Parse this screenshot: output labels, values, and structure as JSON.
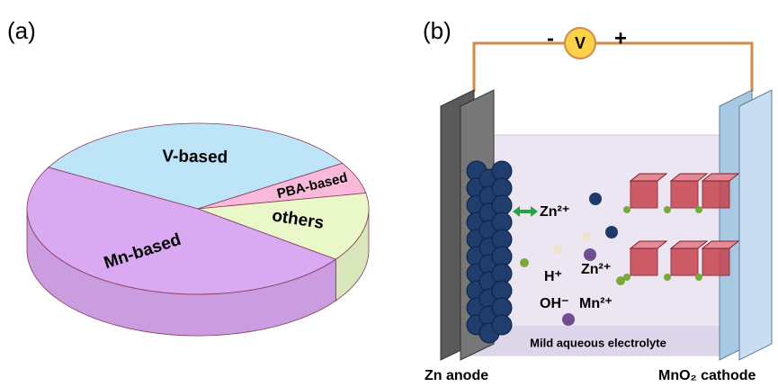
{
  "panel_labels": [
    "(a)",
    "(b)"
  ],
  "chart_data": {
    "type": "pie",
    "categories": [
      "V-based",
      "PBA-based",
      "others",
      "Mn-based"
    ],
    "values": [
      33,
      6,
      13,
      48
    ],
    "colors": [
      "#bde4f7",
      "#f8b9da",
      "#e9f7c9",
      "#d9a9f2"
    ]
  },
  "diagram": {
    "meter": "V",
    "minus": "-",
    "plus": "+",
    "ions": [
      "Zn²⁺",
      "H⁺",
      "Zn²⁺",
      "OH⁻",
      "Mn²⁺"
    ],
    "electrolyte": "Mild aqueous electrolyte",
    "anode": "Zn anode",
    "cathode": "MnO₂ cathode"
  }
}
